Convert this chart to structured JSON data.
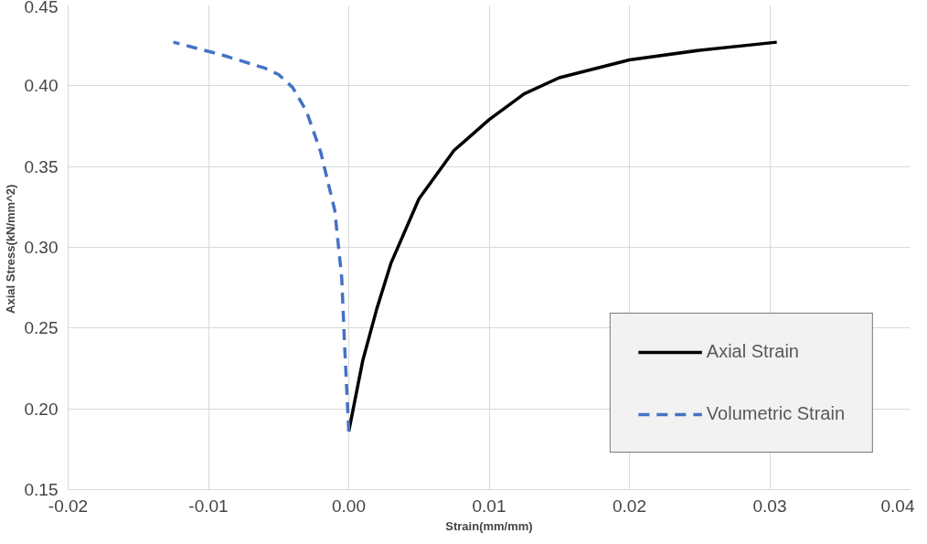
{
  "chart_data": {
    "type": "line",
    "xlabel": "Strain(mm/mm)",
    "ylabel": "Axial  Stress(kN/mm^2)",
    "xlim": [
      -0.02,
      0.04
    ],
    "ylim": [
      0.15,
      0.45
    ],
    "xticks": [
      {
        "value": -0.02,
        "label": "-0.02"
      },
      {
        "value": -0.01,
        "label": "-0.01"
      },
      {
        "value": 0,
        "label": "0.00"
      },
      {
        "value": 0.01,
        "label": "0.01"
      },
      {
        "value": 0.02,
        "label": "0.02"
      },
      {
        "value": 0.03,
        "label": "0.03"
      },
      {
        "value": 0.04,
        "label": "0.04"
      }
    ],
    "yticks": [
      {
        "value": 0.15,
        "label": "0.15"
      },
      {
        "value": 0.2,
        "label": "0.20"
      },
      {
        "value": 0.25,
        "label": "0.25"
      },
      {
        "value": 0.3,
        "label": "0.30"
      },
      {
        "value": 0.35,
        "label": "0.35"
      },
      {
        "value": 0.4,
        "label": "0.40"
      },
      {
        "value": 0.45,
        "label": "0.45"
      }
    ],
    "grid": true,
    "legend": "bottom right",
    "series": [
      {
        "name": "Axial Strain",
        "color": "#000000",
        "line_style": "solid",
        "x": [
          0.0,
          0.001,
          0.002,
          0.003,
          0.005,
          0.0075,
          0.01,
          0.0125,
          0.015,
          0.02,
          0.025,
          0.0305
        ],
        "values": [
          0.186,
          0.23,
          0.262,
          0.29,
          0.33,
          0.36,
          0.379,
          0.395,
          0.405,
          0.416,
          0.422,
          0.427
        ]
      },
      {
        "name": "Volumetric Strain",
        "color": "#4472c4",
        "line_style": "dashed",
        "x": [
          0.0,
          -0.0003,
          -0.0005,
          -0.001,
          -0.002,
          -0.003,
          -0.004,
          -0.005,
          -0.006,
          -0.009,
          -0.0125
        ],
        "values": [
          0.186,
          0.24,
          0.281,
          0.323,
          0.359,
          0.384,
          0.399,
          0.407,
          0.411,
          0.419,
          0.427
        ]
      }
    ]
  }
}
